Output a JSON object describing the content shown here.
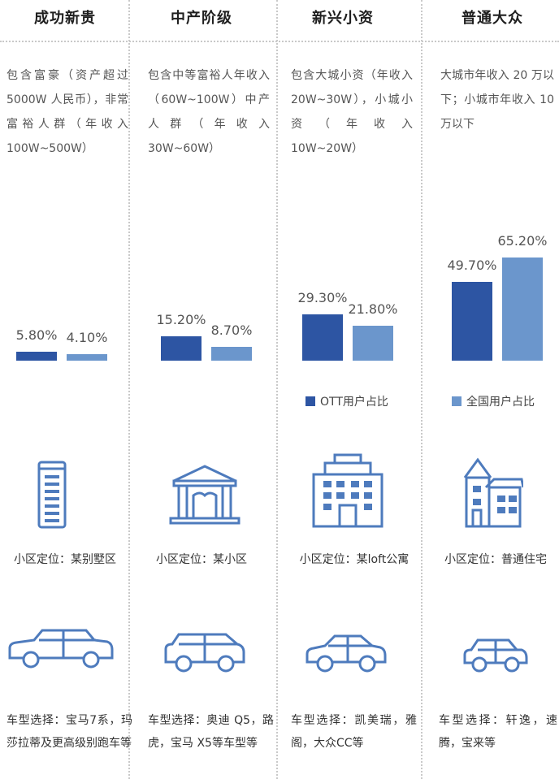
{
  "colors": {
    "ott": "#2d55a3",
    "national": "#6b96cc",
    "icon": "#4e7bbd"
  },
  "legend": {
    "ott": "OTT用户占比",
    "national": "全国用户占比"
  },
  "chart_data": {
    "type": "bar",
    "categories": [
      "成功新贵",
      "中产阶级",
      "新兴小资",
      "普通大众"
    ],
    "series": [
      {
        "name": "OTT用户占比",
        "values": [
          5.8,
          15.2,
          29.3,
          49.7
        ]
      },
      {
        "name": "全国用户占比",
        "values": [
          4.1,
          8.7,
          21.8,
          65.2
        ]
      }
    ],
    "value_labels": [
      [
        "5.80%",
        "4.10%"
      ],
      [
        "15.20%",
        "8.70%"
      ],
      [
        "29.30%",
        "21.80%"
      ],
      [
        "49.70%",
        "65.20%"
      ]
    ],
    "ylim": [
      0,
      70
    ],
    "grid": false,
    "legend_position": "right"
  },
  "columns": [
    {
      "title": "成功新贵",
      "desc": "包含富豪（资产超过 5000W 人民币），非常富裕人群（年收入 100W~500W）",
      "icon": "tower-icon",
      "location": "小区定位：某别墅区",
      "car_icon": "limousine-icon",
      "car": "车型选择：宝马7系，玛莎拉蒂及更高级别跑车等"
    },
    {
      "title": "中产阶级",
      "desc": "包含中等富裕人年收入（60W~100W）中产人群（年收入 30W~60W）",
      "icon": "villa-icon",
      "location": "小区定位：某小区",
      "car_icon": "suv-icon",
      "car": "车型选择：奥迪 Q5，路虎，宝马 X5等车型等"
    },
    {
      "title": "新兴小资",
      "desc": "包含大城小资（年收入 20W~30W），小城小资（年收入 10W~20W）",
      "icon": "apartment-icon",
      "location": "小区定位：某loft公寓",
      "car_icon": "sedan-icon",
      "car": "车型选择：凯美瑞，雅阁，大众CC等"
    },
    {
      "title": "普通大众",
      "desc": "大城市年收入 20 万以下；小城市年收入 10 万以下",
      "icon": "house-icon",
      "location": "小区定位：普通住宅",
      "car_icon": "compact-car-icon",
      "car": "车型选择：轩逸，速腾，宝来等"
    }
  ]
}
